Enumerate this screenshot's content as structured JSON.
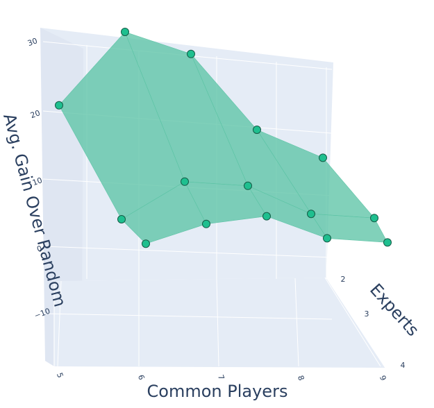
{
  "chart_data": {
    "type": "surface3d",
    "title": "",
    "xlabel": "Common Players",
    "ylabel": "Experts",
    "zlabel": "Avg. Gain Over Random",
    "x_ticks": [
      "5",
      "6",
      "7",
      "8",
      "9"
    ],
    "y_ticks": [
      "2",
      "3",
      "4"
    ],
    "z_ticks": [
      "30",
      "20",
      "10",
      "0",
      "−10"
    ],
    "xlim": [
      5,
      9
    ],
    "ylim": [
      1,
      4
    ],
    "zlim": [
      -19,
      31
    ],
    "grid": true,
    "surface_color": "#5ec4a6",
    "marker_color": "#1fbf8f",
    "marker_edge_color": "#145a45",
    "points": [
      {
        "x": 5,
        "y": 1,
        "z": 18
      },
      {
        "x": 5,
        "y": 2,
        "z": 1
      },
      {
        "x": 5,
        "y": 3,
        "z": -1
      },
      {
        "x": 6,
        "y": 1,
        "z": 31
      },
      {
        "x": 6,
        "y": 2,
        "z": 8
      },
      {
        "x": 6,
        "y": 3,
        "z": 3
      },
      {
        "x": 7,
        "y": 1,
        "z": 28
      },
      {
        "x": 7,
        "y": 2,
        "z": 8
      },
      {
        "x": 7,
        "y": 3,
        "z": 5
      },
      {
        "x": 8,
        "y": 1,
        "z": 16
      },
      {
        "x": 8,
        "y": 2,
        "z": 4
      },
      {
        "x": 8,
        "y": 3,
        "z": 2
      },
      {
        "x": 9,
        "y": 1,
        "z": 12
      },
      {
        "x": 9,
        "y": 2,
        "z": 4
      },
      {
        "x": 9,
        "y": 3,
        "z": 2
      }
    ]
  }
}
